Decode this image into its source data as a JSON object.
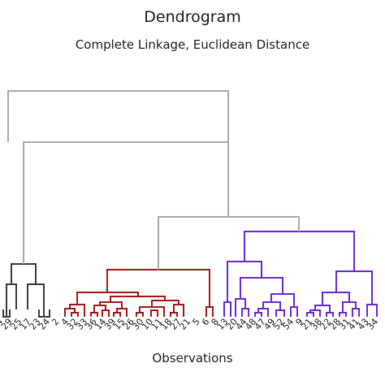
{
  "chart_data": {
    "type": "dendrogram",
    "title": "Dendrogram",
    "subtitle": "Complete Linkage, Euclidean Distance",
    "xlabel": "Observations",
    "ylabel": "",
    "colors": {
      "gray": "#aaaaaa",
      "black": "#3a3a3a",
      "red": "#a01818",
      "purple": "#6b28d6"
    },
    "observations": [
      "4",
      "29",
      "25",
      "17",
      "23",
      "24",
      "2",
      "4",
      "32",
      "33",
      "36",
      "14",
      "39",
      "15",
      "26",
      "30",
      "10",
      "11",
      "18",
      "27",
      "21",
      "5",
      "6",
      "8",
      "13",
      "20",
      "44",
      "48",
      "47",
      "49",
      "52",
      "54",
      "9",
      "21",
      "38",
      "22",
      "28",
      "31",
      "41",
      "43",
      "34"
    ],
    "links": [
      {
        "ys": [
          381,
          390,
          390,
          381
        ],
        "xs": [
          4,
          12
        ],
        "color": "black"
      },
      {
        "ys": [
          381,
          390,
          390,
          381
        ],
        "xs": [
          48,
          61
        ],
        "color": "black"
      },
      {
        "ys": [
          390,
          350,
          350,
          381
        ],
        "xs": [
          8,
          20
        ],
        "color": "black"
      },
      {
        "ys": [
          381,
          350,
          350,
          390
        ],
        "xs": [
          34,
          54
        ],
        "color": "black"
      },
      {
        "ys": [
          350,
          325,
          325,
          350
        ],
        "xs": [
          14,
          44
        ],
        "color": "black"
      },
      {
        "ys": [
          390,
          385,
          385,
          390
        ],
        "xs": [
          88,
          96
        ],
        "color": "red"
      },
      {
        "ys": [
          390,
          380,
          380,
          385
        ],
        "xs": [
          80,
          92
        ],
        "color": "red"
      },
      {
        "ys": [
          390,
          385,
          385,
          390
        ],
        "xs": [
          112,
          120
        ],
        "color": "red"
      },
      {
        "ys": [
          390,
          382,
          382,
          390
        ],
        "xs": [
          126,
          134
        ],
        "color": "red"
      },
      {
        "ys": [
          380,
          375,
          375,
          390
        ],
        "xs": [
          86,
          104
        ],
        "color": "red"
      },
      {
        "ys": [
          390,
          385,
          385,
          390
        ],
        "xs": [
          140,
          148
        ],
        "color": "red"
      },
      {
        "ys": [
          385,
          380,
          380,
          390
        ],
        "xs": [
          144,
          156
        ],
        "color": "red"
      },
      {
        "ys": [
          390,
          385,
          385,
          390
        ],
        "xs": [
          168,
          176
        ],
        "color": "red"
      },
      {
        "ys": [
          390,
          382,
          382,
          390
        ],
        "xs": [
          186,
          194
        ],
        "color": "red"
      },
      {
        "ys": [
          385,
          378,
          378,
          390
        ],
        "xs": [
          172,
          202
        ],
        "color": "red"
      },
      {
        "ys": [
          390,
          385,
          385,
          390
        ],
        "xs": [
          210,
          218
        ],
        "color": "red"
      },
      {
        "ys": [
          385,
          375,
          375,
          390
        ],
        "xs": [
          214,
          226
        ],
        "color": "red"
      },
      {
        "ys": [
          382,
          376,
          376,
          385
        ],
        "xs": [
          130,
          116
        ],
        "color": "red"
      },
      {
        "ys": [
          376,
          372,
          372,
          380
        ],
        "xs": [
          123,
          150
        ],
        "color": "red"
      },
      {
        "ys": [
          378,
          370,
          370,
          375
        ],
        "xs": [
          187,
          220
        ],
        "color": "red"
      },
      {
        "ys": [
          372,
          365,
          365,
          370
        ],
        "xs": [
          136,
          203
        ],
        "color": "red"
      },
      {
        "ys": [
          375,
          360,
          360,
          365
        ],
        "xs": [
          95,
          170
        ],
        "color": "red"
      },
      {
        "ys": [
          390,
          378,
          378,
          390
        ],
        "xs": [
          254,
          262
        ],
        "color": "red"
      },
      {
        "ys": [
          360,
          332,
          332,
          378
        ],
        "xs": [
          132,
          258
        ],
        "color": "red"
      },
      {
        "ys": [
          390,
          372,
          372,
          390
        ],
        "xs": [
          276,
          284
        ],
        "color": "purple"
      },
      {
        "ys": [
          390,
          380,
          380,
          390
        ],
        "xs": [
          298,
          306
        ],
        "color": "purple"
      },
      {
        "ys": [
          390,
          368,
          368,
          380
        ],
        "xs": [
          290,
          302
        ],
        "color": "purple"
      },
      {
        "ys": [
          390,
          385,
          385,
          390
        ],
        "xs": [
          314,
          322
        ],
        "color": "purple"
      },
      {
        "ys": [
          390,
          380,
          380,
          385
        ],
        "xs": [
          330,
          318
        ],
        "color": "purple"
      },
      {
        "ys": [
          390,
          382,
          382,
          390
        ],
        "xs": [
          340,
          350
        ],
        "color": "purple"
      },
      {
        "ys": [
          380,
          372,
          372,
          382
        ],
        "xs": [
          324,
          345
        ],
        "color": "purple"
      },
      {
        "ys": [
          390,
          378,
          378,
          390
        ],
        "xs": [
          358,
          366
        ],
        "color": "purple"
      },
      {
        "ys": [
          372,
          362,
          362,
          378
        ],
        "xs": [
          334,
          362
        ],
        "color": "purple"
      },
      {
        "ys": [
          368,
          342,
          342,
          362
        ],
        "xs": [
          296,
          348
        ],
        "color": "purple"
      },
      {
        "ys": [
          372,
          322,
          322,
          342
        ],
        "xs": [
          280,
          322
        ],
        "color": "purple"
      },
      {
        "ys": [
          390,
          385,
          385,
          390
        ],
        "xs": [
          378,
          386
        ],
        "color": "purple"
      },
      {
        "ys": [
          390,
          382,
          382,
          385
        ],
        "xs": [
          394,
          382
        ],
        "color": "purple"
      },
      {
        "ys": [
          390,
          385,
          385,
          390
        ],
        "xs": [
          402,
          410
        ],
        "color": "purple"
      },
      {
        "ys": [
          382,
          376,
          376,
          385
        ],
        "xs": [
          388,
          406
        ],
        "color": "purple"
      },
      {
        "ys": [
          390,
          385,
          385,
          390
        ],
        "xs": [
          418,
          426
        ],
        "color": "purple"
      },
      {
        "ys": [
          390,
          380,
          380,
          390
        ],
        "xs": [
          434,
          442
        ],
        "color": "purple"
      },
      {
        "ys": [
          385,
          372,
          372,
          380
        ],
        "xs": [
          422,
          438
        ],
        "color": "purple"
      },
      {
        "ys": [
          390,
          375,
          375,
          390
        ],
        "xs": [
          452,
          464
        ],
        "color": "purple"
      },
      {
        "ys": [
          376,
          360,
          360,
          372
        ],
        "xs": [
          397,
          430
        ],
        "color": "purple"
      },
      {
        "ys": [
          375,
          334,
          334,
          360
        ],
        "xs": [
          458,
          414
        ],
        "color": "purple"
      },
      {
        "ys": [
          322,
          285,
          285,
          334
        ],
        "xs": [
          301,
          436
        ],
        "color": "purple"
      },
      {
        "ys": [
          332,
          267,
          267,
          285
        ],
        "xs": [
          195,
          368
        ],
        "color": "gray"
      },
      {
        "ys": [
          325,
          175,
          175,
          267
        ],
        "xs": [
          29,
          281
        ],
        "color": "gray"
      },
      {
        "ys": [
          175,
          112,
          112,
          267
        ],
        "xs": [
          10,
          281
        ],
        "color": "gray"
      }
    ]
  }
}
